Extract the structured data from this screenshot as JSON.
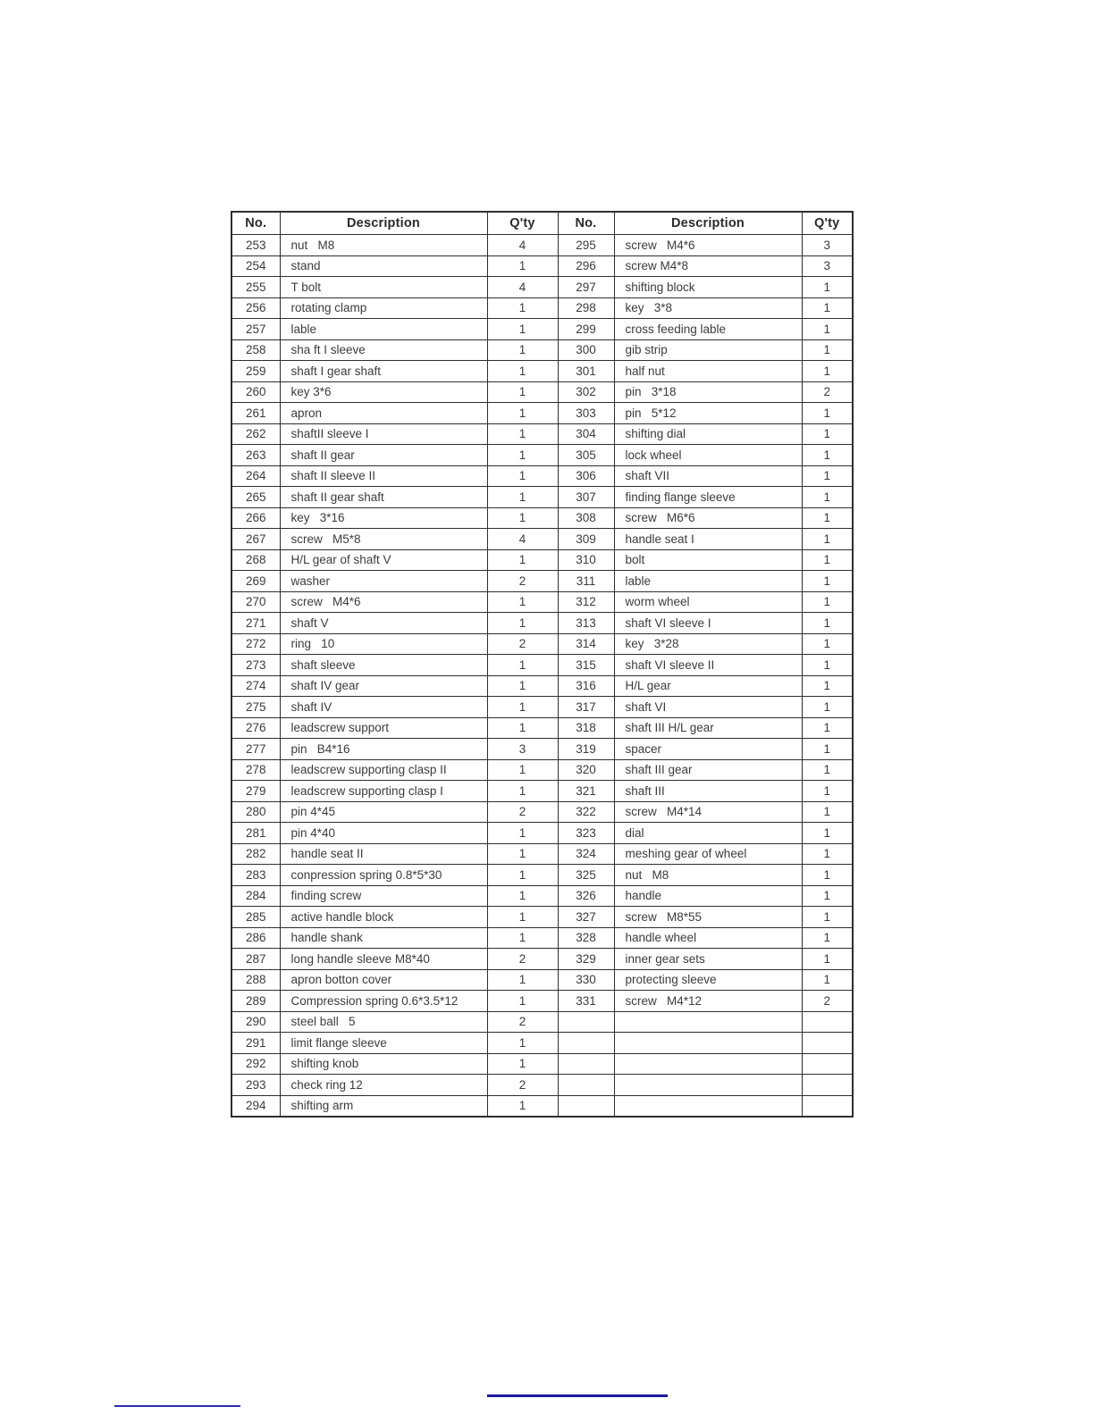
{
  "table": {
    "headers": [
      "No.",
      "Description",
      "Q'ty",
      "No.",
      "Description",
      "Q'ty"
    ],
    "rows": [
      [
        "253",
        "nut   M8",
        "4",
        "295",
        "screw   M4*6",
        "3"
      ],
      [
        "254",
        "stand",
        "1",
        "296",
        "screw M4*8",
        "3"
      ],
      [
        "255",
        "T bolt",
        "4",
        "297",
        "shifting block",
        "1"
      ],
      [
        "256",
        "rotating clamp",
        "1",
        "298",
        "key   3*8",
        "1"
      ],
      [
        "257",
        "lable",
        "1",
        "299",
        "cross feeding lable",
        "1"
      ],
      [
        "258",
        "sha ft I sleeve",
        "1",
        "300",
        "gib strip",
        "1"
      ],
      [
        "259",
        "shaft I gear shaft",
        "1",
        "301",
        "half nut",
        "1"
      ],
      [
        "260",
        "key 3*6",
        "1",
        "302",
        "pin   3*18",
        "2"
      ],
      [
        "261",
        "apron",
        "1",
        "303",
        "pin   5*12",
        "1"
      ],
      [
        "262",
        "shaftII sleeve I",
        "1",
        "304",
        "shifting dial",
        "1"
      ],
      [
        "263",
        "shaft II gear",
        "1",
        "305",
        "lock wheel",
        "1"
      ],
      [
        "264",
        "shaft II sleeve II",
        "1",
        "306",
        "shaft VII",
        "1"
      ],
      [
        "265",
        "shaft II gear shaft",
        "1",
        "307",
        "finding flange sleeve",
        "1"
      ],
      [
        "266",
        "key   3*16",
        "1",
        "308",
        "screw   M6*6",
        "1"
      ],
      [
        "267",
        "screw   M5*8",
        "4",
        "309",
        "handle seat I",
        "1"
      ],
      [
        "268",
        "H/L gear of shaft V",
        "1",
        "310",
        "bolt",
        "1"
      ],
      [
        "269",
        "washer",
        "2",
        "311",
        "lable",
        "1"
      ],
      [
        "270",
        "screw   M4*6",
        "1",
        "312",
        "worm wheel",
        "1"
      ],
      [
        "271",
        "shaft V",
        "1",
        "313",
        "shaft VI sleeve I",
        "1"
      ],
      [
        "272",
        "ring   10",
        "2",
        "314",
        "key   3*28",
        "1"
      ],
      [
        "273",
        "shaft sleeve",
        "1",
        "315",
        "shaft VI sleeve II",
        "1"
      ],
      [
        "274",
        "shaft IV gear",
        "1",
        "316",
        "H/L gear",
        "1"
      ],
      [
        "275",
        "shaft IV",
        "1",
        "317",
        "shaft VI",
        "1"
      ],
      [
        "276",
        "leadscrew support",
        "1",
        "318",
        "shaft III H/L gear",
        "1"
      ],
      [
        "277",
        "pin   B4*16",
        "3",
        "319",
        "spacer",
        "1"
      ],
      [
        "278",
        "leadscrew supporting clasp II",
        "1",
        "320",
        "shaft III gear",
        "1"
      ],
      [
        "279",
        "leadscrew supporting clasp I",
        "1",
        "321",
        "shaft III",
        "1"
      ],
      [
        "280",
        "pin 4*45",
        "2",
        "322",
        "screw   M4*14",
        "1"
      ],
      [
        "281",
        "pin 4*40",
        "1",
        "323",
        "dial",
        "1"
      ],
      [
        "282",
        "handle seat II",
        "1",
        "324",
        "meshing gear of wheel",
        "1"
      ],
      [
        "283",
        "conpression spring 0.8*5*30",
        "1",
        "325",
        "nut   M8",
        "1"
      ],
      [
        "284",
        "finding screw",
        "1",
        "326",
        "handle",
        "1"
      ],
      [
        "285",
        "active handle block",
        "1",
        "327",
        "screw   M8*55",
        "1"
      ],
      [
        "286",
        "handle shank",
        "1",
        "328",
        "handle wheel",
        "1"
      ],
      [
        "287",
        "long handle sleeve M8*40",
        "2",
        "329",
        "inner gear sets",
        "1"
      ],
      [
        "288",
        "apron botton cover",
        "1",
        "330",
        "protecting sleeve",
        "1"
      ],
      [
        "289",
        "Compression spring 0.6*3.5*12",
        "1",
        "331",
        "screw   M4*12",
        "2"
      ],
      [
        "290",
        "steel ball   5",
        "2",
        "",
        "",
        ""
      ],
      [
        "291",
        "limit flange sleeve",
        "1",
        "",
        "",
        ""
      ],
      [
        "292",
        "shifting knob",
        "1",
        "",
        "",
        ""
      ],
      [
        "293",
        "check ring 12",
        "2",
        "",
        "",
        ""
      ],
      [
        "294",
        "shifting arm",
        "1",
        "",
        "",
        ""
      ]
    ]
  },
  "colors": {
    "table_border": "#2e2e2e",
    "cell_text": "#3c3c3c",
    "link_line_center": "#1b1b9d",
    "link_line_left": "#2d2dae"
  }
}
